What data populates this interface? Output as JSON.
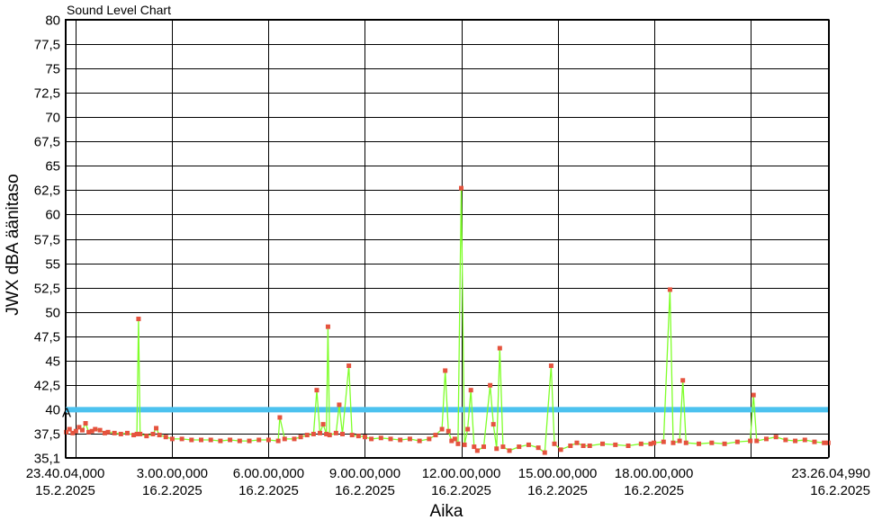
{
  "chart_data": {
    "type": "line",
    "title": "Sound Level Chart",
    "xlabel": "Aika",
    "ylabel": "JWX dBA äänitaso",
    "ylim": [
      35.1,
      80
    ],
    "y_ticks": [
      {
        "value": 80,
        "label": "80"
      },
      {
        "value": 77.5,
        "label": "77,5"
      },
      {
        "value": 75,
        "label": "75"
      },
      {
        "value": 72.5,
        "label": "72,5"
      },
      {
        "value": 70,
        "label": "70"
      },
      {
        "value": 67.5,
        "label": "67,5"
      },
      {
        "value": 65,
        "label": "65"
      },
      {
        "value": 62.5,
        "label": "62,5"
      },
      {
        "value": 60,
        "label": "60"
      },
      {
        "value": 57.5,
        "label": "57,5"
      },
      {
        "value": 55,
        "label": "55"
      },
      {
        "value": 52.5,
        "label": "52,5"
      },
      {
        "value": 50,
        "label": "50"
      },
      {
        "value": 47.5,
        "label": "47,5"
      },
      {
        "value": 45,
        "label": "45"
      },
      {
        "value": 42.5,
        "label": "42,5"
      },
      {
        "value": 40,
        "label": "40"
      },
      {
        "value": 37.5,
        "label": "37,5"
      },
      {
        "value": 35.1,
        "label": "35,1"
      }
    ],
    "xlim": [
      -0.3322,
      23.4347
    ],
    "x_ticks": [
      {
        "value": -0.3322,
        "label": [
          "23.40.04,000",
          "15.2.2025"
        ]
      },
      {
        "value": 3,
        "label": [
          "3.00.00,000",
          "16.2.2025"
        ]
      },
      {
        "value": 6,
        "label": [
          "6.00.00,000",
          "16.2.2025"
        ]
      },
      {
        "value": 9,
        "label": [
          "9.00.00,000",
          "16.2.2025"
        ]
      },
      {
        "value": 12,
        "label": [
          "12.00.00,000",
          "16.2.2025"
        ]
      },
      {
        "value": 15,
        "label": [
          "15.00.00,000",
          "16.2.2025"
        ]
      },
      {
        "value": 18,
        "label": [
          "18.00.00,000",
          "16.2.2025"
        ]
      },
      {
        "value": 23.4347,
        "label": [
          "23.26.04,990",
          "16.2.2025"
        ]
      }
    ],
    "x_grid": [
      -0.3322,
      0,
      3,
      6,
      9,
      12,
      15,
      18,
      21,
      23.4347
    ],
    "grid": true,
    "limit_line": {
      "value": 40,
      "label": "A",
      "color": "#4cc2ef"
    },
    "series": [
      {
        "color": "#7fff2a",
        "marker_color": "#e5533e",
        "values": [
          [
            -0.3,
            37.7
          ],
          [
            -0.2,
            38.0
          ],
          [
            -0.1,
            37.6
          ],
          [
            0.0,
            37.8
          ],
          [
            0.1,
            38.2
          ],
          [
            0.2,
            37.9
          ],
          [
            0.3,
            38.6
          ],
          [
            0.4,
            37.7
          ],
          [
            0.5,
            37.8
          ],
          [
            0.6,
            38.0
          ],
          [
            0.75,
            37.9
          ],
          [
            0.9,
            37.6
          ],
          [
            1.0,
            37.7
          ],
          [
            1.2,
            37.6
          ],
          [
            1.4,
            37.5
          ],
          [
            1.6,
            37.6
          ],
          [
            1.8,
            37.4
          ],
          [
            1.9,
            37.5
          ],
          [
            1.95,
            49.3
          ],
          [
            2.0,
            37.5
          ],
          [
            2.2,
            37.3
          ],
          [
            2.4,
            37.5
          ],
          [
            2.5,
            38.1
          ],
          [
            2.6,
            37.4
          ],
          [
            2.8,
            37.2
          ],
          [
            3.0,
            37.0
          ],
          [
            3.3,
            37.0
          ],
          [
            3.6,
            36.9
          ],
          [
            3.9,
            36.9
          ],
          [
            4.2,
            36.9
          ],
          [
            4.5,
            36.8
          ],
          [
            4.8,
            36.9
          ],
          [
            5.1,
            36.8
          ],
          [
            5.4,
            36.8
          ],
          [
            5.7,
            36.9
          ],
          [
            6.0,
            36.9
          ],
          [
            6.3,
            36.8
          ],
          [
            6.35,
            39.2
          ],
          [
            6.5,
            37.0
          ],
          [
            6.8,
            37.0
          ],
          [
            7.0,
            37.2
          ],
          [
            7.2,
            37.4
          ],
          [
            7.4,
            37.5
          ],
          [
            7.5,
            42.0
          ],
          [
            7.6,
            37.6
          ],
          [
            7.7,
            38.5
          ],
          [
            7.8,
            37.5
          ],
          [
            7.85,
            48.5
          ],
          [
            7.9,
            37.4
          ],
          [
            8.1,
            37.6
          ],
          [
            8.2,
            40.5
          ],
          [
            8.3,
            37.5
          ],
          [
            8.5,
            44.5
          ],
          [
            8.6,
            37.4
          ],
          [
            8.8,
            37.3
          ],
          [
            9.0,
            37.2
          ],
          [
            9.2,
            37.0
          ],
          [
            9.5,
            37.1
          ],
          [
            9.8,
            37.0
          ],
          [
            10.1,
            36.9
          ],
          [
            10.4,
            37.0
          ],
          [
            10.7,
            36.8
          ],
          [
            11.0,
            37.0
          ],
          [
            11.2,
            37.4
          ],
          [
            11.4,
            38.0
          ],
          [
            11.5,
            44.0
          ],
          [
            11.6,
            37.8
          ],
          [
            11.7,
            36.8
          ],
          [
            11.8,
            37.0
          ],
          [
            11.9,
            36.5
          ],
          [
            12.0,
            62.7
          ],
          [
            12.1,
            36.4
          ],
          [
            12.2,
            38.0
          ],
          [
            12.3,
            42.0
          ],
          [
            12.4,
            36.2
          ],
          [
            12.5,
            35.8
          ],
          [
            12.7,
            36.2
          ],
          [
            12.9,
            42.5
          ],
          [
            13.0,
            38.5
          ],
          [
            13.1,
            36.0
          ],
          [
            13.2,
            46.3
          ],
          [
            13.3,
            36.2
          ],
          [
            13.5,
            35.8
          ],
          [
            13.8,
            36.2
          ],
          [
            14.1,
            36.4
          ],
          [
            14.4,
            36.1
          ],
          [
            14.6,
            35.6
          ],
          [
            14.8,
            44.5
          ],
          [
            14.9,
            36.5
          ],
          [
            15.1,
            35.9
          ],
          [
            15.4,
            36.3
          ],
          [
            15.6,
            36.6
          ],
          [
            15.8,
            36.3
          ],
          [
            16.0,
            36.3
          ],
          [
            16.4,
            36.5
          ],
          [
            16.8,
            36.4
          ],
          [
            17.2,
            36.3
          ],
          [
            17.6,
            36.5
          ],
          [
            17.9,
            36.5
          ],
          [
            18.0,
            36.6
          ],
          [
            18.3,
            36.7
          ],
          [
            18.5,
            52.3
          ],
          [
            18.6,
            36.6
          ],
          [
            18.8,
            36.8
          ],
          [
            18.9,
            43.0
          ],
          [
            19.0,
            36.6
          ],
          [
            19.4,
            36.5
          ],
          [
            19.8,
            36.6
          ],
          [
            20.2,
            36.5
          ],
          [
            20.6,
            36.7
          ],
          [
            21.0,
            36.8
          ],
          [
            21.1,
            41.5
          ],
          [
            21.2,
            36.8
          ],
          [
            21.5,
            37.0
          ],
          [
            21.8,
            37.2
          ],
          [
            22.1,
            36.9
          ],
          [
            22.4,
            36.8
          ],
          [
            22.7,
            36.9
          ],
          [
            23.0,
            36.7
          ],
          [
            23.3,
            36.6
          ],
          [
            23.43,
            36.6
          ]
        ]
      }
    ]
  }
}
